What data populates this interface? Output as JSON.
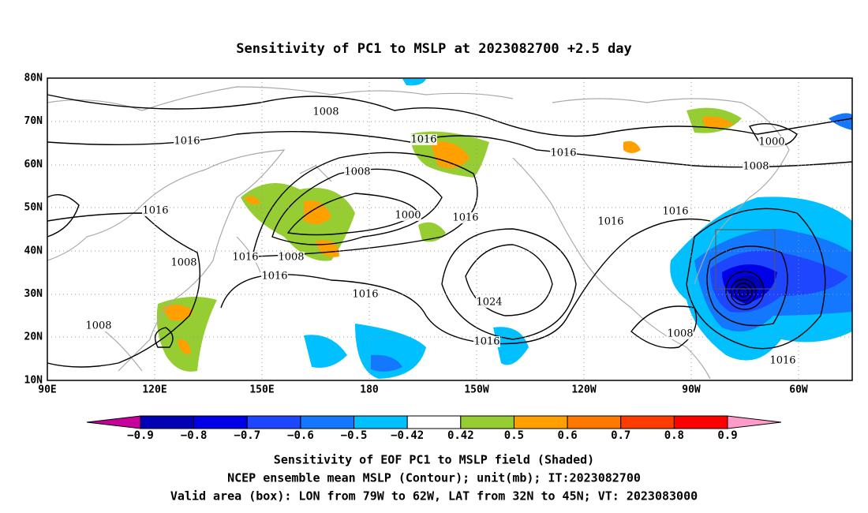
{
  "header": {
    "title": "Sensitivity of PC1 to MSLP at 2023082700 +2.5 day"
  },
  "map": {
    "lat_labels": [
      "80N",
      "70N",
      "60N",
      "50N",
      "40N",
      "30N",
      "20N",
      "10N"
    ],
    "lon_labels": [
      "90E",
      "120E",
      "150E",
      "180",
      "150W",
      "120W",
      "90W",
      "60W"
    ],
    "contour_labels": [
      "1008",
      "1016",
      "1016",
      "1016",
      "1000",
      "1008",
      "1008",
      "1000",
      "1016",
      "1016",
      "1016",
      "1016",
      "1008",
      "1016",
      "1008",
      "1016",
      "1016",
      "1024",
      "1008",
      "1016",
      "1008",
      "1016"
    ]
  },
  "colorbar": {
    "labels": [
      "−0.9",
      "−0.8",
      "−0.7",
      "−0.6",
      "−0.5",
      "−0.42",
      "0.42",
      "0.5",
      "0.6",
      "0.7",
      "0.8",
      "0.9"
    ],
    "colors": [
      "#0000b4",
      "#0000e6",
      "#1e46ff",
      "#1478ff",
      "#00c0ff",
      "#ffffff",
      "#96cd32",
      "#ffa000",
      "#ff7800",
      "#ff3c00",
      "#ff0000"
    ],
    "low_color": "#c8009b",
    "high_color": "#ff9bc8"
  },
  "caption": [
    "Sensitivity of EOF PC1 to MSLP field (Shaded)",
    "NCEP ensemble mean MSLP (Contour); unit(mb); IT:2023082700",
    "Valid area (box): LON from 79W to 62W, LAT from 32N to 45N; VT: 2023083000"
  ]
}
